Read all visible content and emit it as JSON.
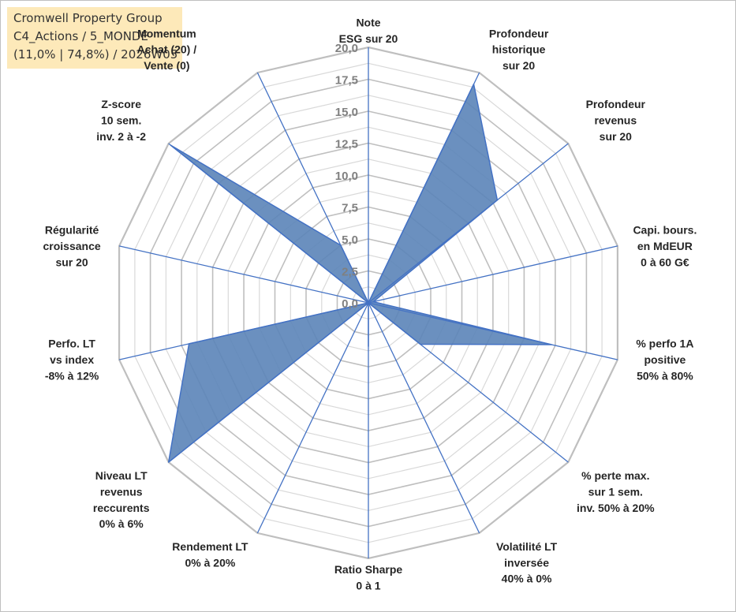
{
  "info": {
    "line1": "Cromwell Property Group",
    "line2": "C4_Actions / 5_MONDE",
    "line3": "(11,0% | 74,8%) / 2026W05"
  },
  "chart_data": {
    "type": "radar",
    "rmin": 0,
    "rmax": 20,
    "tick_labels": [
      "0,0",
      "2,5",
      "5,0",
      "7,5",
      "10,0",
      "12,5",
      "15,0",
      "17,5",
      "20,0"
    ],
    "axes": [
      {
        "label": [
          "Note",
          "ESG sur 20"
        ],
        "value": 0
      },
      {
        "label": [
          "Profondeur",
          "historique",
          "sur 20"
        ],
        "value": 19.0
      },
      {
        "label": [
          "Profondeur",
          "revenus",
          "sur 20"
        ],
        "value": 12.9
      },
      {
        "label": [
          "Capi. bours.",
          "en MdEUR",
          "0 à 60 G€"
        ],
        "value": 0.4
      },
      {
        "label": [
          "% perfo 1A",
          "positive",
          "50% à 80%"
        ],
        "value": 14.7
      },
      {
        "label": [
          "% perte max.",
          "sur 1 sem.",
          "inv. 50% à 20%"
        ],
        "value": 5.2
      },
      {
        "label": [
          "Volatilité LT",
          "inversée",
          "40% à 0%"
        ],
        "value": 0
      },
      {
        "label": [
          "Ratio Sharpe",
          "0 à 1"
        ],
        "value": 3.4
      },
      {
        "label": [
          "Rendement LT",
          "0% à 20%"
        ],
        "value": 0
      },
      {
        "label": [
          "Niveau LT",
          "revenus",
          "reccurents",
          "0% à 6%"
        ],
        "value": 20.0
      },
      {
        "label": [
          "Perfo. LT",
          "vs index",
          "-8% à 12%"
        ],
        "value": 14.4
      },
      {
        "label": [
          "Régularité",
          "croissance",
          "sur 20"
        ],
        "value": 0
      },
      {
        "label": [
          "Z-score",
          "10 sem.",
          "inv. 2 à -2"
        ],
        "value": 19.8
      },
      {
        "label": [
          "Momentum",
          "Achat (20) /",
          "Vente (0)"
        ],
        "value": 5.0
      }
    ],
    "colors": {
      "fill": "#5b84b8",
      "stroke": "#4472c4",
      "spoke": "#4472c4",
      "grid": "#bfbfbf",
      "grid_minor": "#d9d9d9"
    }
  }
}
